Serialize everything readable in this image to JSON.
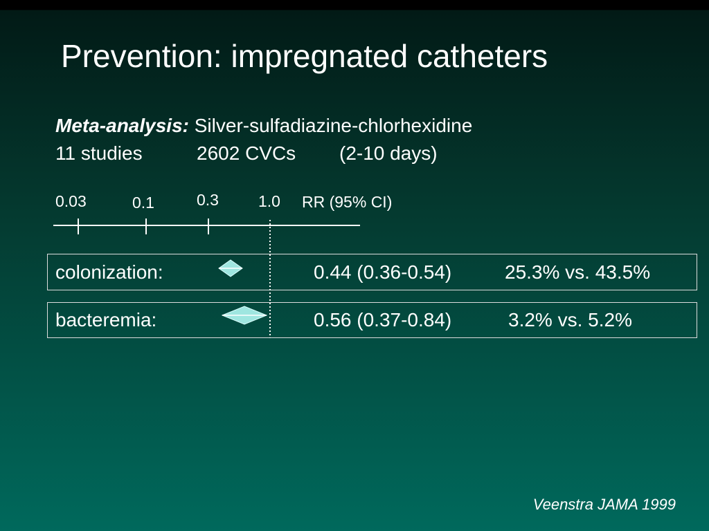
{
  "title": "Prevention: impregnated catheters",
  "subtitle": {
    "label": "Meta-analysis:",
    "text": "Silver-sulfadiazine-chlorhexidine"
  },
  "details": [
    "11 studies",
    "2602 CVCs",
    "(2-10 days)"
  ],
  "axis": {
    "ticks": [
      "0.03",
      "0.1",
      "0.3",
      "1.0"
    ],
    "label": "RR (95% CI)"
  },
  "rows": [
    {
      "outcome": "colonization:",
      "estimate": "0.44 (0.36-0.54)",
      "rates": "25.3% vs. 43.5%"
    },
    {
      "outcome": "bacteremia:",
      "estimate": "0.56 (0.37-0.84)",
      "rates": "3.2% vs. 5.2%"
    }
  ],
  "citation": "Veenstra JAMA 1999"
}
